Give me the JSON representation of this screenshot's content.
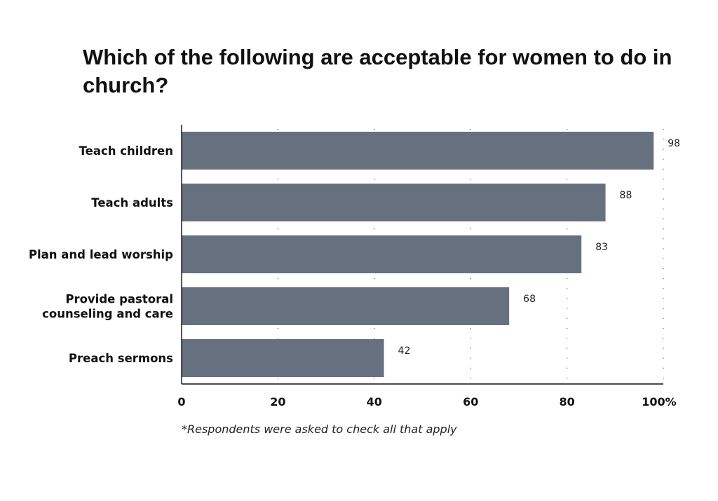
{
  "chart_data": {
    "type": "bar",
    "orientation": "horizontal",
    "title": "Which of the following are acceptable for women to do in church?",
    "categories": [
      "Teach children",
      "Teach adults",
      "Plan and lead worship",
      "Provide pastoral counseling and care",
      "Preach sermons"
    ],
    "category_lines": [
      [
        "Teach children"
      ],
      [
        "Teach adults"
      ],
      [
        "Plan and lead worship"
      ],
      [
        "Provide pastoral",
        "counseling and care"
      ],
      [
        "Preach sermons"
      ]
    ],
    "values": [
      98,
      88,
      83,
      68,
      42
    ],
    "data_labels": [
      "98",
      "88",
      "83",
      "68",
      "42"
    ],
    "xlim": [
      0,
      100
    ],
    "x_ticks": [
      0,
      20,
      40,
      60,
      80,
      100
    ],
    "x_tick_labels": [
      "0",
      "20",
      "40",
      "60",
      "80",
      "100%"
    ],
    "grid": "vertical dotted",
    "bar_color": "#67707f",
    "xlabel": "",
    "ylabel": "",
    "footnote": "*Respondents were asked to check all that apply"
  }
}
